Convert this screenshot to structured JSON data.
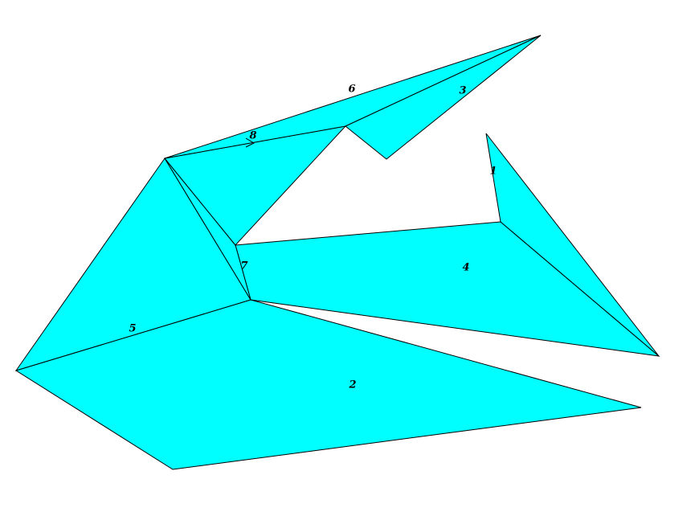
{
  "colors": {
    "background": "#ffffff",
    "piece_fill": "#00ffff",
    "outline": "#000000"
  },
  "pieces": [
    {
      "id": "piece-2",
      "label": "2"
    },
    {
      "id": "piece-5",
      "label": "5"
    },
    {
      "id": "piece-4",
      "label": "4"
    },
    {
      "id": "piece-1",
      "label": "1"
    },
    {
      "id": "piece-7",
      "label": "7"
    },
    {
      "id": "piece-8",
      "label": "8"
    },
    {
      "id": "piece-6",
      "label": "6"
    },
    {
      "id": "piece-3",
      "label": "3"
    }
  ]
}
